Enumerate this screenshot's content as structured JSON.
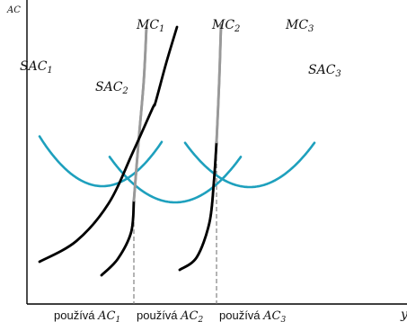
{
  "chart_data": {
    "type": "line",
    "title": "",
    "ylabel": "AC",
    "xlabel": "y",
    "grid": false,
    "legend": "none",
    "xlim": [
      0,
      423
    ],
    "ylim": [
      0,
      338
    ],
    "colors": {
      "sac": "#1ea0bd",
      "mc_black": "#000000",
      "mc_gray": "#999999",
      "guide": "#777777",
      "axis": "#000000"
    },
    "curve_labels": [
      {
        "id": "sac1",
        "base": "SAC",
        "sub": "1"
      },
      {
        "id": "sac2",
        "base": "SAC",
        "sub": "2"
      },
      {
        "id": "sac3",
        "base": "SAC",
        "sub": "3"
      },
      {
        "id": "mc1",
        "base": "MC",
        "sub": "1"
      },
      {
        "id": "mc2",
        "base": "MC",
        "sub": "2"
      },
      {
        "id": "mc3",
        "base": "MC",
        "sub": "3"
      }
    ],
    "x_tick_labels": [
      {
        "word": "používá",
        "base": "AC",
        "sub": "1"
      },
      {
        "word": "používá",
        "base": "AC",
        "sub": "2"
      },
      {
        "word": "používá",
        "base": "AC",
        "sub": "3"
      }
    ],
    "series": [
      {
        "id": "sac1",
        "kind": "SAC",
        "vertex": [
          84,
          131
        ],
        "k": 0.0113,
        "x": [
          14,
          150
        ]
      },
      {
        "id": "sac2",
        "kind": "SAC",
        "vertex": [
          165,
          113
        ],
        "k": 0.0095,
        "x": [
          92,
          238
        ]
      },
      {
        "id": "sac3",
        "kind": "SAC",
        "vertex": [
          248,
          130
        ],
        "k": 0.0095,
        "x": [
          176,
          320
        ]
      },
      {
        "id": "mc1",
        "kind": "MC",
        "points": [
          [
            83,
            32
          ],
          [
            101,
            50
          ],
          [
            116,
            80
          ],
          [
            119,
            115
          ],
          [
            124,
            178
          ],
          [
            130,
            248
          ],
          [
            133,
            308
          ]
        ],
        "gray_from_index": 3
      },
      {
        "id": "mc2",
        "kind": "MC",
        "points": [
          [
            170,
            38
          ],
          [
            189,
            52
          ],
          [
            203,
            90
          ],
          [
            208,
            135
          ],
          [
            211,
            180
          ],
          [
            214,
            248
          ],
          [
            216,
            310
          ]
        ],
        "gray_from_index": 4
      },
      {
        "id": "mc3",
        "kind": "MC",
        "points": [
          [
            14,
            47
          ],
          [
            55,
            70
          ],
          [
            91,
            112
          ],
          [
            118,
            169
          ],
          [
            140,
            218
          ],
          [
            143,
            224
          ],
          [
            155,
            268
          ],
          [
            167,
            308
          ]
        ],
        "gray_from_index": -1
      }
    ],
    "guides": [
      {
        "x": 119,
        "to": "mc1"
      },
      {
        "x": 211,
        "to": "mc2"
      }
    ]
  }
}
